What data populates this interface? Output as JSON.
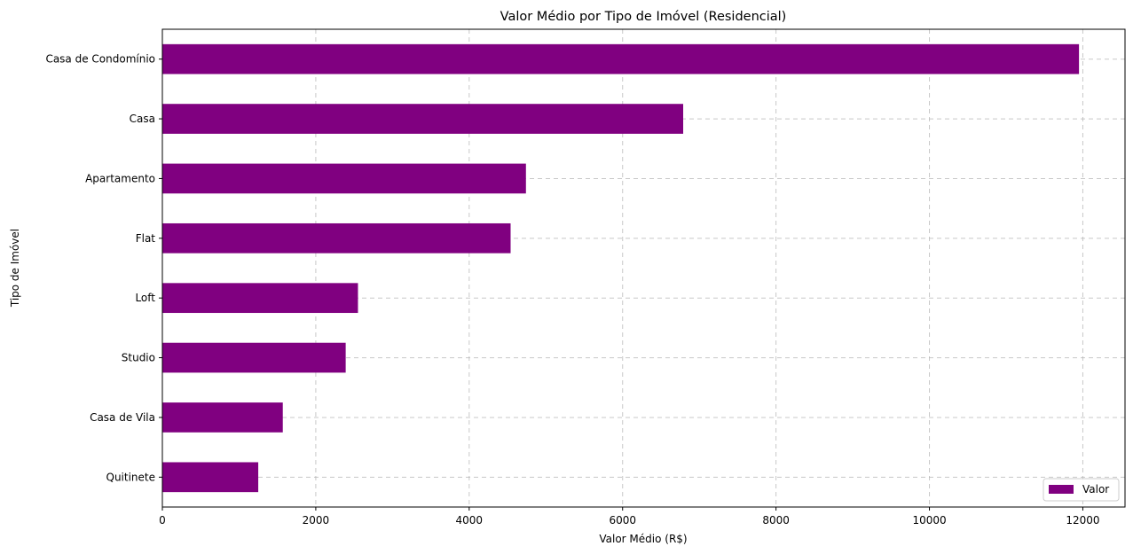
{
  "chart_data": {
    "type": "bar",
    "orientation": "horizontal",
    "title": "Valor Médio por Tipo de Imóvel (Residencial)",
    "xlabel": "Valor Médio (R$)",
    "ylabel": "Tipo de Imóvel",
    "categories": [
      "Quitinete",
      "Casa de Vila",
      "Studio",
      "Loft",
      "Flat",
      "Apartamento",
      "Casa",
      "Casa de Condomínio"
    ],
    "series": [
      {
        "name": "Valor",
        "color": "#800080",
        "values": [
          1250,
          1570,
          2390,
          2550,
          4540,
          4740,
          6790,
          11950
        ]
      }
    ],
    "xlim": [
      0,
      12550
    ],
    "xticks": [
      0,
      2000,
      4000,
      6000,
      8000,
      10000,
      12000
    ],
    "xtick_labels": [
      "0",
      "2000",
      "4000",
      "6000",
      "8000",
      "10000",
      "12000"
    ],
    "grid": true,
    "grid_style": "dashed",
    "legend_position": "lower-right"
  }
}
